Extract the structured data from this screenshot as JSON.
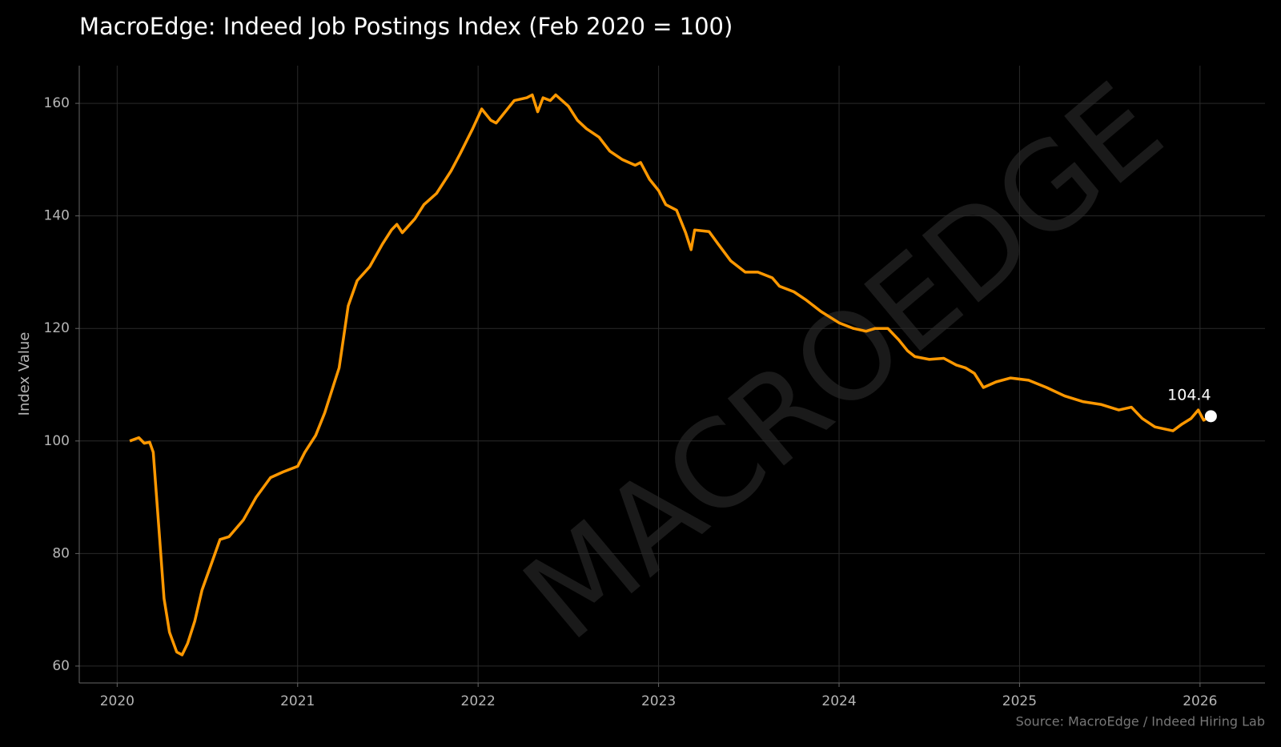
{
  "chart_data": {
    "type": "line",
    "title": "MacroEdge: Indeed Job Postings Index (Feb 2020 = 100)",
    "y_label": "Index Value",
    "source": "Source: MacroEdge / Indeed Hiring Lab",
    "watermark": "MACROEDGE",
    "x": [
      2020.07,
      2020.12,
      2020.15,
      2020.18,
      2020.2,
      2020.23,
      2020.26,
      2020.29,
      2020.33,
      2020.36,
      2020.39,
      2020.43,
      2020.47,
      2020.52,
      2020.57,
      2020.62,
      2020.7,
      2020.77,
      2020.85,
      2020.92,
      2021.0,
      2021.04,
      2021.1,
      2021.15,
      2021.2,
      2021.23,
      2021.28,
      2021.33,
      2021.4,
      2021.47,
      2021.52,
      2021.55,
      2021.58,
      2021.65,
      2021.7,
      2021.77,
      2021.85,
      2021.9,
      2021.97,
      2022.02,
      2022.07,
      2022.1,
      2022.15,
      2022.2,
      2022.27,
      2022.3,
      2022.33,
      2022.36,
      2022.4,
      2022.43,
      2022.5,
      2022.55,
      2022.6,
      2022.67,
      2022.73,
      2022.8,
      2022.87,
      2022.9,
      2022.95,
      2023.0,
      2023.04,
      2023.1,
      2023.15,
      2023.18,
      2023.2,
      2023.28,
      2023.33,
      2023.4,
      2023.48,
      2023.55,
      2023.63,
      2023.67,
      2023.75,
      2023.82,
      2023.9,
      2024.0,
      2024.08,
      2024.15,
      2024.2,
      2024.27,
      2024.33,
      2024.38,
      2024.42,
      2024.5,
      2024.58,
      2024.65,
      2024.7,
      2024.75,
      2024.8,
      2024.87,
      2024.95,
      2025.05,
      2025.15,
      2025.25,
      2025.35,
      2025.45,
      2025.55,
      2025.62,
      2025.68,
      2025.75,
      2025.85,
      2025.9,
      2025.95,
      2025.99,
      2026.02,
      2026.06
    ],
    "series": [
      {
        "name": "Indeed Job Postings Index",
        "color": "#ff9800",
        "values": [
          100,
          100.6,
          99.6,
          99.8,
          98,
          85,
          72,
          66,
          62.5,
          62,
          64,
          68,
          73.5,
          78,
          82.5,
          83,
          86,
          90,
          93.5,
          94.5,
          95.5,
          98,
          101,
          105,
          110,
          113,
          124,
          128.5,
          131,
          135,
          137.5,
          138.5,
          137,
          139.5,
          142,
          144,
          148,
          151,
          155.5,
          159,
          157,
          156.5,
          158.5,
          160.5,
          161,
          161.5,
          158.5,
          161,
          160.5,
          161.5,
          159.5,
          157,
          155.5,
          154,
          151.5,
          150,
          149,
          149.5,
          146.5,
          144.5,
          142,
          141,
          137,
          134,
          137.5,
          137.2,
          135,
          132,
          130,
          130,
          129,
          127.5,
          126.5,
          125,
          123,
          121,
          120,
          119.5,
          120,
          120,
          118,
          116,
          115,
          114.5,
          114.7,
          113.5,
          113,
          112,
          109.5,
          110.5,
          111.2,
          110.8,
          109.5,
          108,
          107,
          106.5,
          105.5,
          106,
          104,
          102.5,
          101.8,
          103,
          104,
          105.5,
          103.7,
          104.4
        ]
      }
    ],
    "xlim": [
      2019.79,
      2026.36
    ],
    "ylim": [
      57,
      166.7
    ],
    "xticks": [
      2020,
      2021,
      2022,
      2023,
      2024,
      2025,
      2026
    ],
    "yticks": [
      60,
      80,
      100,
      120,
      140,
      160
    ],
    "grid": true
  }
}
